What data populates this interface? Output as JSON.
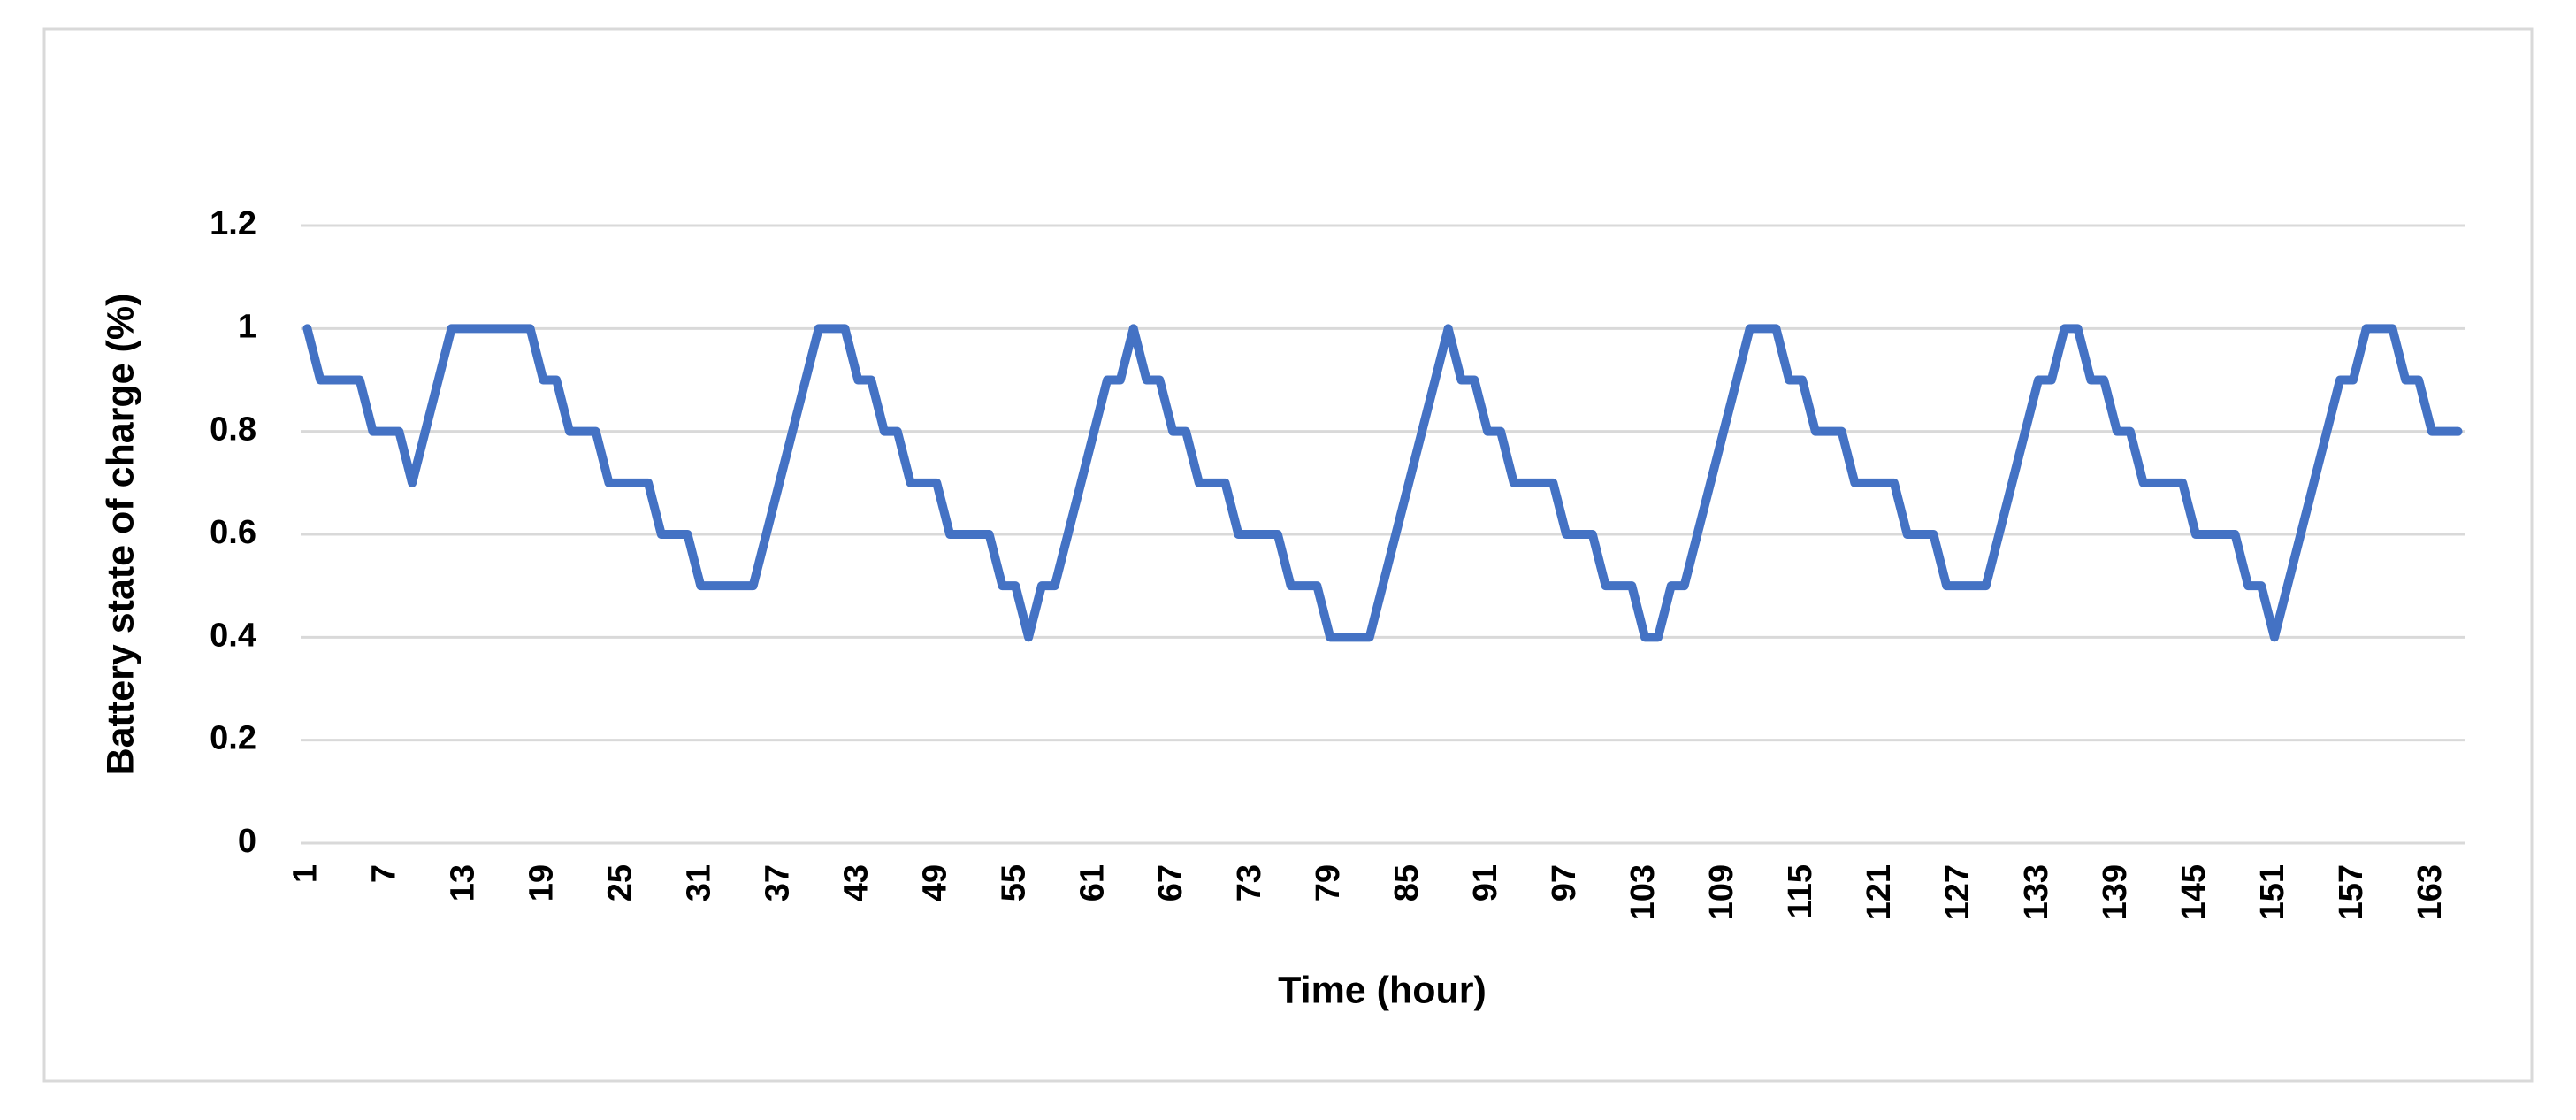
{
  "chart_data": {
    "type": "line",
    "x_label": "Time (hour)",
    "y_label": "Battery state of charge (%)",
    "categories": [
      "1",
      null,
      null,
      null,
      null,
      null,
      "7",
      null,
      null,
      null,
      null,
      null,
      "13",
      null,
      null,
      null,
      null,
      null,
      "19",
      null,
      null,
      null,
      null,
      null,
      "25",
      null,
      null,
      null,
      null,
      null,
      "31",
      null,
      null,
      null,
      null,
      null,
      "37",
      null,
      null,
      null,
      null,
      null,
      "43",
      null,
      null,
      null,
      null,
      null,
      "49",
      null,
      null,
      null,
      null,
      null,
      "55",
      null,
      null,
      null,
      null,
      null,
      "61",
      null,
      null,
      null,
      null,
      null,
      "67",
      null,
      null,
      null,
      null,
      null,
      "73",
      null,
      null,
      null,
      null,
      null,
      "79",
      null,
      null,
      null,
      null,
      null,
      "85",
      null,
      null,
      null,
      null,
      null,
      "91",
      null,
      null,
      null,
      null,
      null,
      "97",
      null,
      null,
      null,
      null,
      null,
      "103",
      null,
      null,
      null,
      null,
      null,
      "109",
      null,
      null,
      null,
      null,
      null,
      "115",
      null,
      null,
      null,
      null,
      null,
      "121",
      null,
      null,
      null,
      null,
      null,
      "127",
      null,
      null,
      null,
      null,
      null,
      "133",
      null,
      null,
      null,
      null,
      null,
      "139",
      null,
      null,
      null,
      null,
      null,
      "145",
      null,
      null,
      null,
      null,
      null,
      "151",
      null,
      null,
      null,
      null,
      null,
      "157",
      null,
      null,
      null,
      null,
      null,
      "163",
      null,
      null
    ],
    "values": [
      1,
      0.9,
      0.9,
      0.9,
      0.9,
      0.8,
      0.8,
      0.8,
      0.7,
      0.8,
      0.9,
      1,
      1,
      1,
      1,
      1,
      1,
      1,
      0.9,
      0.9,
      0.8,
      0.8,
      0.8,
      0.7,
      0.7,
      0.7,
      0.7,
      0.6,
      0.6,
      0.6,
      0.5,
      0.5,
      0.5,
      0.5,
      0.5,
      0.6,
      0.7,
      0.8,
      0.9,
      1,
      1,
      1,
      0.9,
      0.9,
      0.8,
      0.8,
      0.7,
      0.7,
      0.7,
      0.6,
      0.6,
      0.6,
      0.6,
      0.5,
      0.5,
      0.4,
      0.5,
      0.5,
      0.6,
      0.7,
      0.8,
      0.9,
      0.9,
      1,
      0.9,
      0.9,
      0.8,
      0.8,
      0.7,
      0.7,
      0.7,
      0.6,
      0.6,
      0.6,
      0.6,
      0.5,
      0.5,
      0.5,
      0.4,
      0.4,
      0.4,
      0.4,
      0.5,
      0.6,
      0.7,
      0.8,
      0.9,
      1,
      0.9,
      0.9,
      0.8,
      0.8,
      0.7,
      0.7,
      0.7,
      0.7,
      0.6,
      0.6,
      0.6,
      0.5,
      0.5,
      0.5,
      0.4,
      0.4,
      0.5,
      0.5,
      0.6,
      0.7,
      0.8,
      0.9,
      1,
      1,
      1,
      0.9,
      0.9,
      0.8,
      0.8,
      0.8,
      0.7,
      0.7,
      0.7,
      0.7,
      0.6,
      0.6,
      0.6,
      0.5,
      0.5,
      0.5,
      0.5,
      0.6,
      0.7,
      0.8,
      0.9,
      0.9,
      1,
      1,
      0.9,
      0.9,
      0.8,
      0.8,
      0.7,
      0.7,
      0.7,
      0.7,
      0.6,
      0.6,
      0.6,
      0.6,
      0.5,
      0.5,
      0.4,
      0.5,
      0.6,
      0.7,
      0.8,
      0.9,
      0.9,
      1,
      1,
      1,
      0.9,
      0.9,
      0.8,
      0.8,
      0.8
    ],
    "color": "#4472c4",
    "ylim": [
      0,
      1.2
    ],
    "yticks": [
      0,
      0.2,
      0.4,
      0.6,
      0.8,
      1,
      1.2
    ],
    "grid": true
  }
}
